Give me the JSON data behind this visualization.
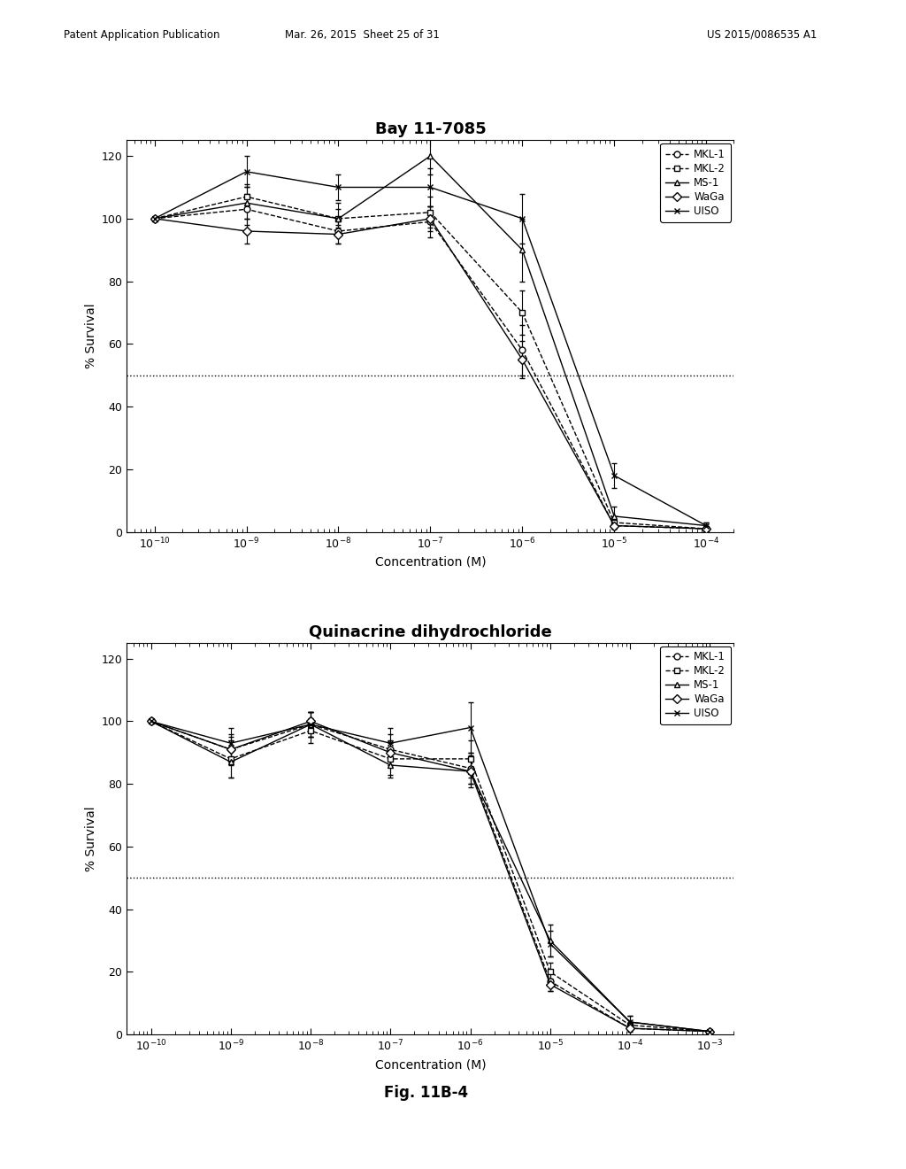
{
  "fig_title": "Fig. 11B-4",
  "header_left": "Patent Application Publication",
  "header_center": "Mar. 26, 2015  Sheet 25 of 31",
  "header_right": "US 2015/0086535 A1",
  "chart1_title": "Bay 11-7085",
  "chart2_title": "Quinacrine dihydrochloride",
  "xlabel": "Concentration (M)",
  "ylabel": "% Survival",
  "x_values": [
    1e-10,
    1e-09,
    1e-08,
    1e-07,
    1e-06,
    1e-05,
    0.0001
  ],
  "chart1_xlim": [
    5e-11,
    0.0002
  ],
  "chart2_xlim": [
    5e-11,
    0.002
  ],
  "ylim": [
    0,
    125
  ],
  "yticks": [
    0,
    20,
    40,
    60,
    80,
    100,
    120
  ],
  "chart1": {
    "MKL1": {
      "y": [
        100,
        103,
        96,
        99,
        58,
        2,
        1
      ],
      "yerr": [
        0,
        5,
        4,
        5,
        8,
        1,
        0.5
      ],
      "linestyle": "--",
      "marker": "o"
    },
    "MKL2": {
      "y": [
        100,
        107,
        100,
        102,
        70,
        3,
        1
      ],
      "yerr": [
        0,
        4,
        3,
        5,
        7,
        2,
        0.5
      ],
      "linestyle": "--",
      "marker": "s"
    },
    "MS1": {
      "y": [
        100,
        105,
        100,
        120,
        90,
        5,
        2
      ],
      "yerr": [
        0,
        5,
        5,
        6,
        10,
        3,
        1
      ],
      "linestyle": "-",
      "marker": "^"
    },
    "WaGa": {
      "y": [
        100,
        96,
        95,
        100,
        55,
        2,
        1
      ],
      "yerr": [
        0,
        4,
        3,
        4,
        6,
        1,
        0.5
      ],
      "linestyle": "-",
      "marker": "D"
    },
    "UISO": {
      "y": [
        100,
        115,
        110,
        110,
        100,
        18,
        2
      ],
      "yerr": [
        0,
        5,
        4,
        6,
        8,
        4,
        1
      ],
      "linestyle": "-",
      "marker": "x"
    }
  },
  "chart2": {
    "MKL1": {
      "y": [
        100,
        91,
        99,
        91,
        85,
        17,
        2,
        1
      ],
      "yerr": [
        0,
        5,
        4,
        5,
        5,
        3,
        1,
        0.5
      ],
      "linestyle": "--",
      "marker": "o"
    },
    "MKL2": {
      "y": [
        100,
        88,
        97,
        88,
        88,
        20,
        3,
        1
      ],
      "yerr": [
        0,
        6,
        4,
        5,
        6,
        3,
        1,
        0.5
      ],
      "linestyle": "--",
      "marker": "s"
    },
    "MS1": {
      "y": [
        100,
        87,
        99,
        86,
        84,
        30,
        4,
        1
      ],
      "yerr": [
        0,
        5,
        4,
        4,
        5,
        5,
        2,
        0.5
      ],
      "linestyle": "-",
      "marker": "^"
    },
    "WaGa": {
      "y": [
        100,
        91,
        100,
        90,
        84,
        16,
        2,
        1
      ],
      "yerr": [
        0,
        4,
        3,
        4,
        4,
        2,
        0.5,
        0.5
      ],
      "linestyle": "-",
      "marker": "D"
    },
    "UISO": {
      "y": [
        100,
        93,
        99,
        93,
        98,
        29,
        4,
        1
      ],
      "yerr": [
        0,
        5,
        4,
        5,
        8,
        4,
        2,
        0.5
      ],
      "linestyle": "-",
      "marker": "x"
    }
  },
  "chart2_x_values": [
    1e-10,
    1e-09,
    1e-08,
    1e-07,
    1e-06,
    1e-05,
    0.0001,
    0.001
  ],
  "legend_labels": [
    "MKL-1",
    "MKL-2",
    "MS-1",
    "WaGa",
    "UISO"
  ],
  "legend_markers": [
    "o",
    "s",
    "^",
    "D",
    "x"
  ],
  "legend_linestyles": [
    "--",
    "--",
    "-",
    "-",
    "-"
  ],
  "hline_y": 50,
  "background_color": "#ffffff",
  "text_color": "#000000",
  "line_color": "#000000"
}
